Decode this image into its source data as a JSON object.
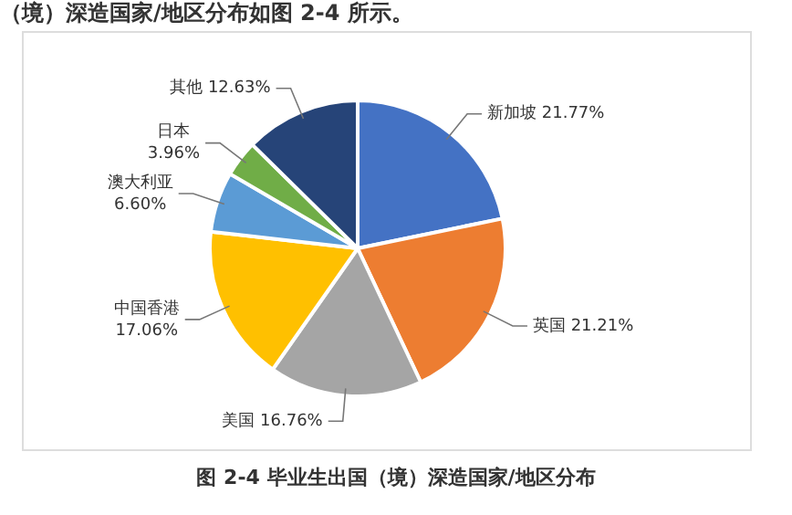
{
  "chart_data": {
    "type": "pie",
    "title": "（境）深造国家/地区分布如图 2-4 所示。",
    "categories": [
      "新加坡",
      "英国",
      "美国",
      "中国香港",
      "澳大利亚",
      "日本",
      "其他"
    ],
    "values": [
      21.77,
      21.21,
      16.76,
      17.06,
      6.6,
      3.96,
      12.63
    ],
    "value_labels": [
      "21.77%",
      "21.21%",
      "16.76%",
      "17.06%",
      "6.60%",
      "3.96%",
      "12.63%"
    ],
    "colors": [
      "#4472c4",
      "#ed7d31",
      "#a5a5a5",
      "#ffc000",
      "#5b9bd5",
      "#70ad47",
      "#264478"
    ],
    "legend": false,
    "annotations": [
      "图 2-4 毕业生出国（境）深造国家/地区分布"
    ]
  }
}
